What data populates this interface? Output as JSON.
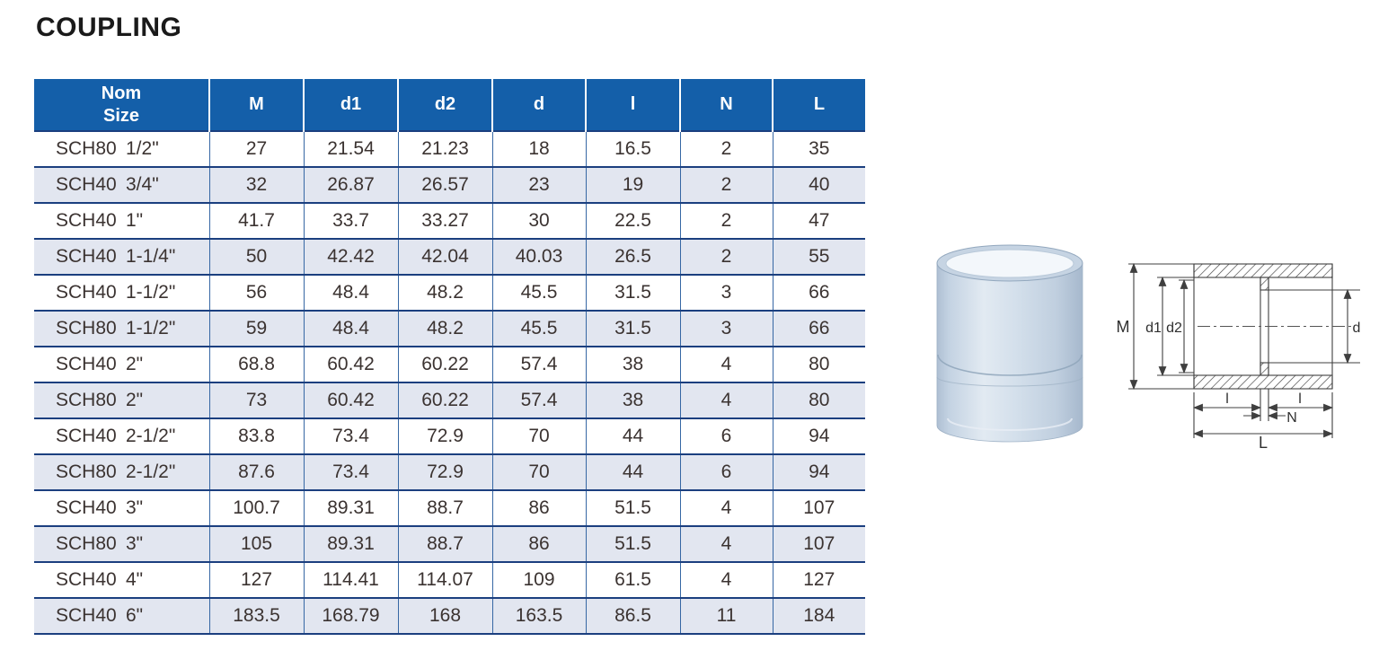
{
  "title": "COUPLING",
  "colors": {
    "header_bg": "#145FA9",
    "row_alt": "#E2E6F0",
    "row_border": "#1B3F7F",
    "col_border": "#3667A4",
    "text": "#3B3331"
  },
  "table": {
    "header": {
      "nom_line1": "Nom",
      "nom_line2": "Size",
      "cols": [
        "M",
        "d1",
        "d2",
        "d",
        "l",
        "N",
        "L"
      ]
    },
    "rows": [
      {
        "sch": "SCH80",
        "size": "1/2\"",
        "values": [
          "27",
          "21.54",
          "21.23",
          "18",
          "16.5",
          "2",
          "35"
        ]
      },
      {
        "sch": "SCH40",
        "size": "3/4\"",
        "values": [
          "32",
          "26.87",
          "26.57",
          "23",
          "19",
          "2",
          "40"
        ]
      },
      {
        "sch": "SCH40",
        "size": "1\"",
        "values": [
          "41.7",
          "33.7",
          "33.27",
          "30",
          "22.5",
          "2",
          "47"
        ]
      },
      {
        "sch": "SCH40",
        "size": "1-1/4\"",
        "values": [
          "50",
          "42.42",
          "42.04",
          "40.03",
          "26.5",
          "2",
          "55"
        ]
      },
      {
        "sch": "SCH40",
        "size": "1-1/2\"",
        "values": [
          "56",
          "48.4",
          "48.2",
          "45.5",
          "31.5",
          "3",
          "66"
        ]
      },
      {
        "sch": "SCH80",
        "size": "1-1/2\"",
        "values": [
          "59",
          "48.4",
          "48.2",
          "45.5",
          "31.5",
          "3",
          "66"
        ]
      },
      {
        "sch": "SCH40",
        "size": "2\"",
        "values": [
          "68.8",
          "60.42",
          "60.22",
          "57.4",
          "38",
          "4",
          "80"
        ]
      },
      {
        "sch": "SCH80",
        "size": "2\"",
        "values": [
          "73",
          "60.42",
          "60.22",
          "57.4",
          "38",
          "4",
          "80"
        ]
      },
      {
        "sch": "SCH40",
        "size": "2-1/2\"",
        "values": [
          "83.8",
          "73.4",
          "72.9",
          "70",
          "44",
          "6",
          "94"
        ]
      },
      {
        "sch": "SCH80",
        "size": "2-1/2\"",
        "values": [
          "87.6",
          "73.4",
          "72.9",
          "70",
          "44",
          "6",
          "94"
        ]
      },
      {
        "sch": "SCH40",
        "size": "3\"",
        "values": [
          "100.7",
          "89.31",
          "88.7",
          "86",
          "51.5",
          "4",
          "107"
        ]
      },
      {
        "sch": "SCH80",
        "size": "3\"",
        "values": [
          "105",
          "89.31",
          "88.7",
          "86",
          "51.5",
          "4",
          "107"
        ]
      },
      {
        "sch": "SCH40",
        "size": "4\"",
        "values": [
          "127",
          "114.41",
          "114.07",
          "109",
          "61.5",
          "4",
          "127"
        ]
      },
      {
        "sch": "SCH40",
        "size": "6\"",
        "values": [
          "183.5",
          "168.79",
          "168",
          "163.5",
          "86.5",
          "11",
          "184"
        ]
      }
    ]
  },
  "diagram": {
    "m": "M",
    "d1": "d1",
    "d2": "d2",
    "d": "d",
    "l_left": "l",
    "l_right": "l",
    "n": "N",
    "l_total": "L"
  }
}
